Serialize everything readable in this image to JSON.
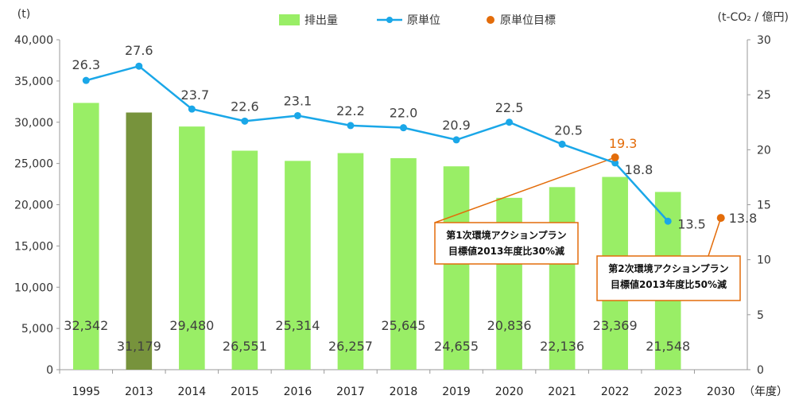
{
  "chart_data": {
    "type": "bar+line",
    "title": "",
    "y_left_label": "(t)",
    "y_right_label": "(t-CO₂ / 億円)",
    "x_unit_label": "（年度）",
    "y_left_lim": [
      0,
      40000
    ],
    "y_left_ticks": [
      "0",
      "5,000",
      "10,000",
      "15,000",
      "20,000",
      "25,000",
      "30,000",
      "35,000",
      "40,000"
    ],
    "y_right_lim": [
      0,
      30
    ],
    "y_right_ticks": [
      "0",
      "5",
      "10",
      "15",
      "20",
      "25",
      "30"
    ],
    "categories": [
      "1995",
      "2013",
      "2014",
      "2015",
      "2016",
      "2017",
      "2018",
      "2019",
      "2020",
      "2021",
      "2022",
      "2023",
      "2030"
    ],
    "legend_position": "top-center",
    "series": [
      {
        "name": "排出量",
        "type": "bar",
        "axis": "left",
        "color": "#99ee66",
        "highlight_color": "#77933c",
        "highlight_category": "2013",
        "values": [
          32342,
          31179,
          29480,
          26551,
          25314,
          26257,
          25645,
          24655,
          20836,
          22136,
          23369,
          21548,
          null
        ],
        "labels": [
          "32,342",
          "31,179",
          "29,480",
          "26,551",
          "25,314",
          "26,257",
          "25,645",
          "24,655",
          "20,836",
          "22,136",
          "23,369",
          "21,548",
          ""
        ]
      },
      {
        "name": "原単位",
        "type": "line",
        "axis": "right",
        "color": "#1aa7e8",
        "values": [
          26.3,
          27.6,
          23.7,
          22.6,
          23.1,
          22.2,
          22.0,
          20.9,
          22.5,
          20.5,
          18.8,
          13.5,
          null
        ],
        "labels": [
          "26.3",
          "27.6",
          "23.7",
          "22.6",
          "23.1",
          "22.2",
          "22.0",
          "20.9",
          "22.5",
          "20.5",
          "18.8",
          "13.5",
          ""
        ]
      },
      {
        "name": "原単位目標",
        "type": "scatter",
        "axis": "right",
        "color": "#e36c0a",
        "points": [
          {
            "category": "2022",
            "value": 19.3,
            "label": "19.3"
          },
          {
            "category": "2030",
            "value": 13.8,
            "label": "13.8"
          }
        ]
      }
    ],
    "annotations": [
      {
        "target": "2022",
        "lines": [
          "第1次環境アクションプラン",
          "目標値2013年度比30%減"
        ]
      },
      {
        "target": "2030",
        "lines": [
          "第2次環境アクションプラン",
          "目標値2013年度比50%減"
        ]
      }
    ]
  }
}
